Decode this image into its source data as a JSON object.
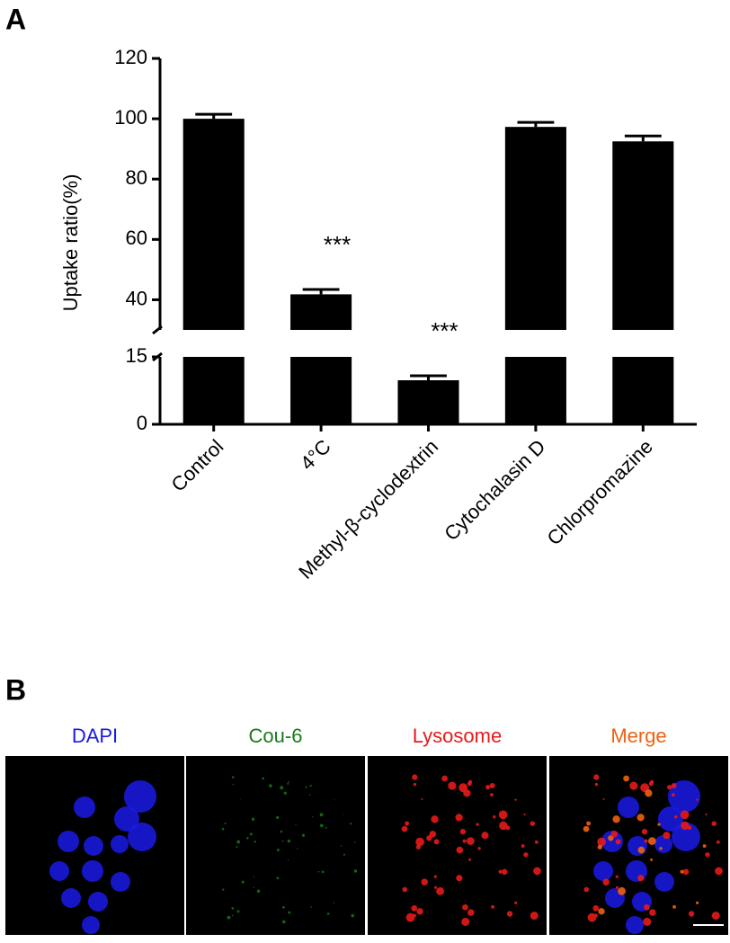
{
  "chart_data": {
    "type": "bar",
    "panel_label": "A",
    "y_label": "Uptake ratio(%)",
    "categories": [
      "Control",
      "4°C",
      "Methyl-β-cyclodextrin",
      "Cytochalasin D",
      "Chlorpromazine"
    ],
    "values": [
      100,
      41.8,
      9.8,
      97.3,
      92.5
    ],
    "errors": [
      1.5,
      1.6,
      1,
      1.5,
      1.8
    ],
    "significance": [
      null,
      "***",
      "***",
      null,
      null
    ],
    "color": "#000000",
    "y_segments": [
      {
        "ylim": [
          0,
          15
        ],
        "yticks": [
          0,
          15
        ]
      },
      {
        "ylim": [
          30,
          120
        ],
        "yticks": [
          40,
          60,
          80,
          100,
          120
        ]
      }
    ]
  },
  "panel_b": {
    "label": "B",
    "images": [
      {
        "label": "DAPI",
        "color": "#1a1ae6"
      },
      {
        "label": "Cou-6",
        "color": "#1a7a1a"
      },
      {
        "label": "Lysosome",
        "color": "#e61a1a"
      },
      {
        "label": "Merge",
        "color": "#f06010"
      }
    ]
  }
}
